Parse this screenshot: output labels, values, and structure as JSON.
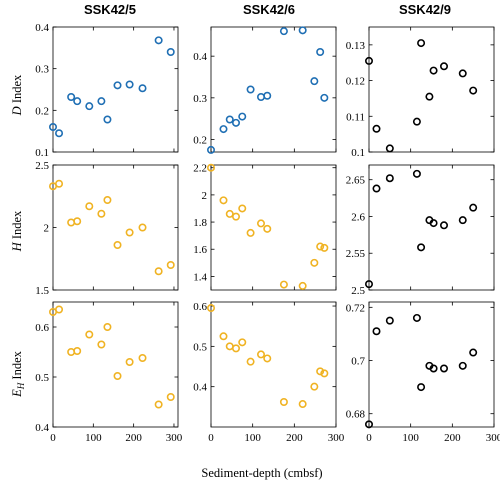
{
  "figure": {
    "row_labels": [
      {
        "symbol": "D",
        "text": " Index"
      },
      {
        "symbol": "H",
        "text": " Index"
      },
      {
        "symbol": "E",
        "sub": "H",
        "text": " Index"
      }
    ],
    "xlabel": "Sediment-depth  (cmbsf)",
    "columns": [
      "SSK42/5",
      "SSK42/6",
      "SSK42/9"
    ],
    "series_colors": [
      "#1f6fb4",
      "#f0b323",
      "#000000"
    ]
  },
  "chart_data": [
    {
      "type": "scatter",
      "title": "SSK42/5",
      "row": 0,
      "col": 0,
      "color": "#1f6fb4",
      "xlim": [
        0,
        310
      ],
      "ylim": [
        0.1,
        0.4
      ],
      "xticks": [
        0,
        100,
        200,
        300
      ],
      "yticks": [
        0.1,
        0.2,
        0.3,
        0.4
      ],
      "ytick_labels": [
        "0.1",
        "0.2",
        "0.3",
        "0.4"
      ],
      "xtick_labels": [],
      "x": [
        0,
        15,
        45,
        60,
        90,
        120,
        135,
        160,
        190,
        222,
        262,
        292
      ],
      "y": [
        0.16,
        0.145,
        0.232,
        0.222,
        0.21,
        0.222,
        0.178,
        0.26,
        0.262,
        0.253,
        0.368,
        0.34
      ]
    },
    {
      "type": "scatter",
      "title": "SSK42/6",
      "row": 0,
      "col": 1,
      "color": "#1f6fb4",
      "xlim": [
        0,
        300
      ],
      "ylim": [
        0.17,
        0.47
      ],
      "xticks": [
        0,
        100,
        200,
        300
      ],
      "yticks": [
        0.2,
        0.3,
        0.4
      ],
      "ytick_labels": [
        "0.2",
        "0.3",
        "0.4"
      ],
      "xtick_labels": [],
      "x": [
        0,
        30,
        45,
        60,
        75,
        95,
        120,
        135,
        175,
        220,
        248,
        262,
        272
      ],
      "y": [
        0.175,
        0.225,
        0.248,
        0.24,
        0.255,
        0.32,
        0.302,
        0.305,
        0.46,
        0.462,
        0.34,
        0.41,
        0.3
      ]
    },
    {
      "type": "scatter",
      "title": "SSK42/9",
      "row": 0,
      "col": 2,
      "color": "#000000",
      "xlim": [
        0,
        300
      ],
      "ylim": [
        0.1,
        0.135
      ],
      "xticks": [
        0,
        100,
        200,
        300
      ],
      "yticks": [
        0.1,
        0.11,
        0.12,
        0.13
      ],
      "ytick_labels": [
        "0.1",
        "0.11",
        "0.12",
        "0.13"
      ],
      "xtick_labels": [],
      "x": [
        0,
        18,
        50,
        115,
        125,
        145,
        155,
        180,
        225,
        250
      ],
      "y": [
        0.1255,
        0.1065,
        0.101,
        0.1085,
        0.1305,
        0.1155,
        0.1228,
        0.124,
        0.122,
        0.1172
      ]
    },
    {
      "type": "scatter",
      "row": 1,
      "col": 0,
      "color": "#f0b323",
      "xlim": [
        0,
        310
      ],
      "ylim": [
        1.5,
        2.5
      ],
      "xticks": [
        0,
        100,
        200,
        300
      ],
      "yticks": [
        1.5,
        2,
        2.5
      ],
      "ytick_labels": [
        "1.5",
        "2",
        "2.5"
      ],
      "xtick_labels": [],
      "x": [
        0,
        15,
        45,
        60,
        90,
        120,
        135,
        160,
        190,
        222,
        262,
        292
      ],
      "y": [
        2.33,
        2.35,
        2.04,
        2.05,
        2.17,
        2.11,
        2.22,
        1.86,
        1.96,
        2.0,
        1.65,
        1.7
      ]
    },
    {
      "type": "scatter",
      "row": 1,
      "col": 1,
      "color": "#f0b323",
      "xlim": [
        0,
        300
      ],
      "ylim": [
        1.3,
        2.22
      ],
      "xticks": [
        0,
        100,
        200,
        300
      ],
      "yticks": [
        1.4,
        1.6,
        1.8,
        2,
        2.2
      ],
      "ytick_labels": [
        "1.4",
        "1.6",
        "1.8",
        "2",
        "2.2"
      ],
      "xtick_labels": [],
      "x": [
        0,
        30,
        45,
        60,
        75,
        95,
        120,
        135,
        175,
        220,
        248,
        262,
        272
      ],
      "y": [
        2.2,
        1.96,
        1.86,
        1.84,
        1.9,
        1.72,
        1.79,
        1.75,
        1.34,
        1.33,
        1.5,
        1.62,
        1.61
      ]
    },
    {
      "type": "scatter",
      "row": 1,
      "col": 2,
      "color": "#000000",
      "xlim": [
        0,
        300
      ],
      "ylim": [
        2.5,
        2.67
      ],
      "xticks": [
        0,
        100,
        200,
        300
      ],
      "yticks": [
        2.5,
        2.55,
        2.6,
        2.65
      ],
      "ytick_labels": [
        "2.5",
        "2.55",
        "2.6",
        "2.65"
      ],
      "xtick_labels": [],
      "x": [
        0,
        18,
        50,
        115,
        125,
        145,
        155,
        180,
        225,
        250
      ],
      "y": [
        2.508,
        2.638,
        2.652,
        2.658,
        2.558,
        2.595,
        2.591,
        2.588,
        2.595,
        2.612
      ]
    },
    {
      "type": "scatter",
      "row": 2,
      "col": 0,
      "color": "#f0b323",
      "xlim": [
        0,
        310
      ],
      "ylim": [
        0.4,
        0.65
      ],
      "xticks": [
        0,
        100,
        200,
        300
      ],
      "yticks": [
        0.4,
        0.5,
        0.6
      ],
      "ytick_labels": [
        "0.4",
        "0.5",
        "0.6"
      ],
      "xtick_labels": [
        "0",
        "100",
        "200",
        "300"
      ],
      "x": [
        0,
        15,
        45,
        60,
        90,
        120,
        135,
        160,
        190,
        222,
        262,
        292
      ],
      "y": [
        0.63,
        0.635,
        0.55,
        0.552,
        0.585,
        0.565,
        0.6,
        0.502,
        0.53,
        0.538,
        0.445,
        0.46
      ]
    },
    {
      "type": "scatter",
      "row": 2,
      "col": 1,
      "color": "#f0b323",
      "xlim": [
        0,
        300
      ],
      "ylim": [
        0.3,
        0.61
      ],
      "xticks": [
        0,
        100,
        200,
        300
      ],
      "yticks": [
        0.4,
        0.5,
        0.6
      ],
      "ytick_labels": [
        "0.4",
        "0.5",
        "0.6"
      ],
      "xtick_labels": [
        "0",
        "100",
        "200",
        "300"
      ],
      "x": [
        0,
        30,
        45,
        60,
        75,
        95,
        120,
        135,
        175,
        220,
        248,
        262,
        272
      ],
      "y": [
        0.595,
        0.525,
        0.5,
        0.495,
        0.51,
        0.462,
        0.48,
        0.47,
        0.362,
        0.357,
        0.4,
        0.438,
        0.433
      ]
    },
    {
      "type": "scatter",
      "row": 2,
      "col": 2,
      "color": "#000000",
      "xlim": [
        0,
        300
      ],
      "ylim": [
        0.675,
        0.722
      ],
      "xticks": [
        0,
        100,
        200,
        300
      ],
      "yticks": [
        0.68,
        0.7,
        0.72
      ],
      "ytick_labels": [
        "0.68",
        "0.7",
        "0.72"
      ],
      "xtick_labels": [
        "0",
        "100",
        "200",
        "300"
      ],
      "x": [
        0,
        18,
        50,
        115,
        125,
        145,
        155,
        180,
        225,
        250
      ],
      "y": [
        0.676,
        0.711,
        0.715,
        0.716,
        0.69,
        0.698,
        0.697,
        0.697,
        0.698,
        0.703
      ]
    }
  ]
}
